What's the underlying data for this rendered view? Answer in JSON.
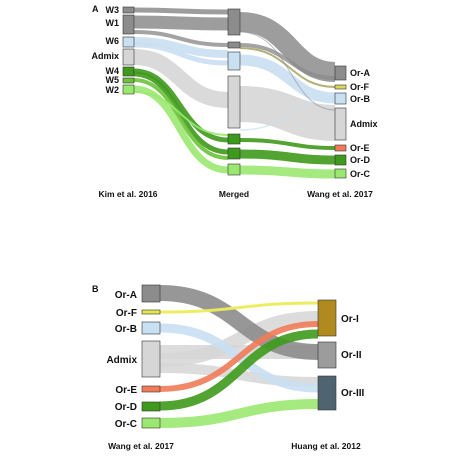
{
  "panels": {
    "A": {
      "letter": "A",
      "column_labels": [
        "Kim et al. 2016",
        "Merged",
        "Wang et al. 2017"
      ],
      "left_nodes": [
        {
          "id": "W3",
          "label": "W3",
          "color": "#8c8c8c"
        },
        {
          "id": "W1",
          "label": "W1",
          "color": "#8c8c8c"
        },
        {
          "id": "W6",
          "label": "W6",
          "color": "#c9dff2"
        },
        {
          "id": "Admix",
          "label": "Admix",
          "color": "#d6d6d6"
        },
        {
          "id": "W4",
          "label": "W4",
          "color": "#3e9a1c"
        },
        {
          "id": "W5",
          "label": "W5",
          "color": "#6dc23a"
        },
        {
          "id": "W2",
          "label": "W2",
          "color": "#9ae870"
        }
      ],
      "right_nodes": [
        {
          "id": "Or-A",
          "label": "Or-A",
          "color": "#8c8c8c"
        },
        {
          "id": "Or-F",
          "label": "Or-F",
          "color": "#d9d65a"
        },
        {
          "id": "Or-B",
          "label": "Or-B",
          "color": "#c9dff2"
        },
        {
          "id": "Admix",
          "label": "Admix",
          "color": "#d6d6d6"
        },
        {
          "id": "Or-E",
          "label": "Or-E",
          "color": "#f07b56"
        },
        {
          "id": "Or-D",
          "label": "Or-D",
          "color": "#3e9a1c"
        },
        {
          "id": "Or-C",
          "label": "Or-C",
          "color": "#9ae870"
        }
      ]
    },
    "B": {
      "letter": "B",
      "column_labels": [
        "Wang et al. 2017",
        "Huang et al. 2012"
      ],
      "left_nodes": [
        {
          "id": "Or-A",
          "label": "Or-A",
          "color": "#8c8c8c"
        },
        {
          "id": "Or-F",
          "label": "Or-F",
          "color": "#e6e64d"
        },
        {
          "id": "Or-B",
          "label": "Or-B",
          "color": "#c9dff2"
        },
        {
          "id": "Admix",
          "label": "Admix",
          "color": "#d6d6d6"
        },
        {
          "id": "Or-E",
          "label": "Or-E",
          "color": "#f07b56"
        },
        {
          "id": "Or-D",
          "label": "Or-D",
          "color": "#3e9a1c"
        },
        {
          "id": "Or-C",
          "label": "Or-C",
          "color": "#9ae870"
        }
      ],
      "right_nodes": [
        {
          "id": "Or-I",
          "label": "Or-I",
          "color": "#b08a1f"
        },
        {
          "id": "Or-II",
          "label": "Or-II",
          "color": "#9c9c9c"
        },
        {
          "id": "Or-III",
          "label": "Or-III",
          "color": "#4f6470"
        }
      ]
    }
  }
}
